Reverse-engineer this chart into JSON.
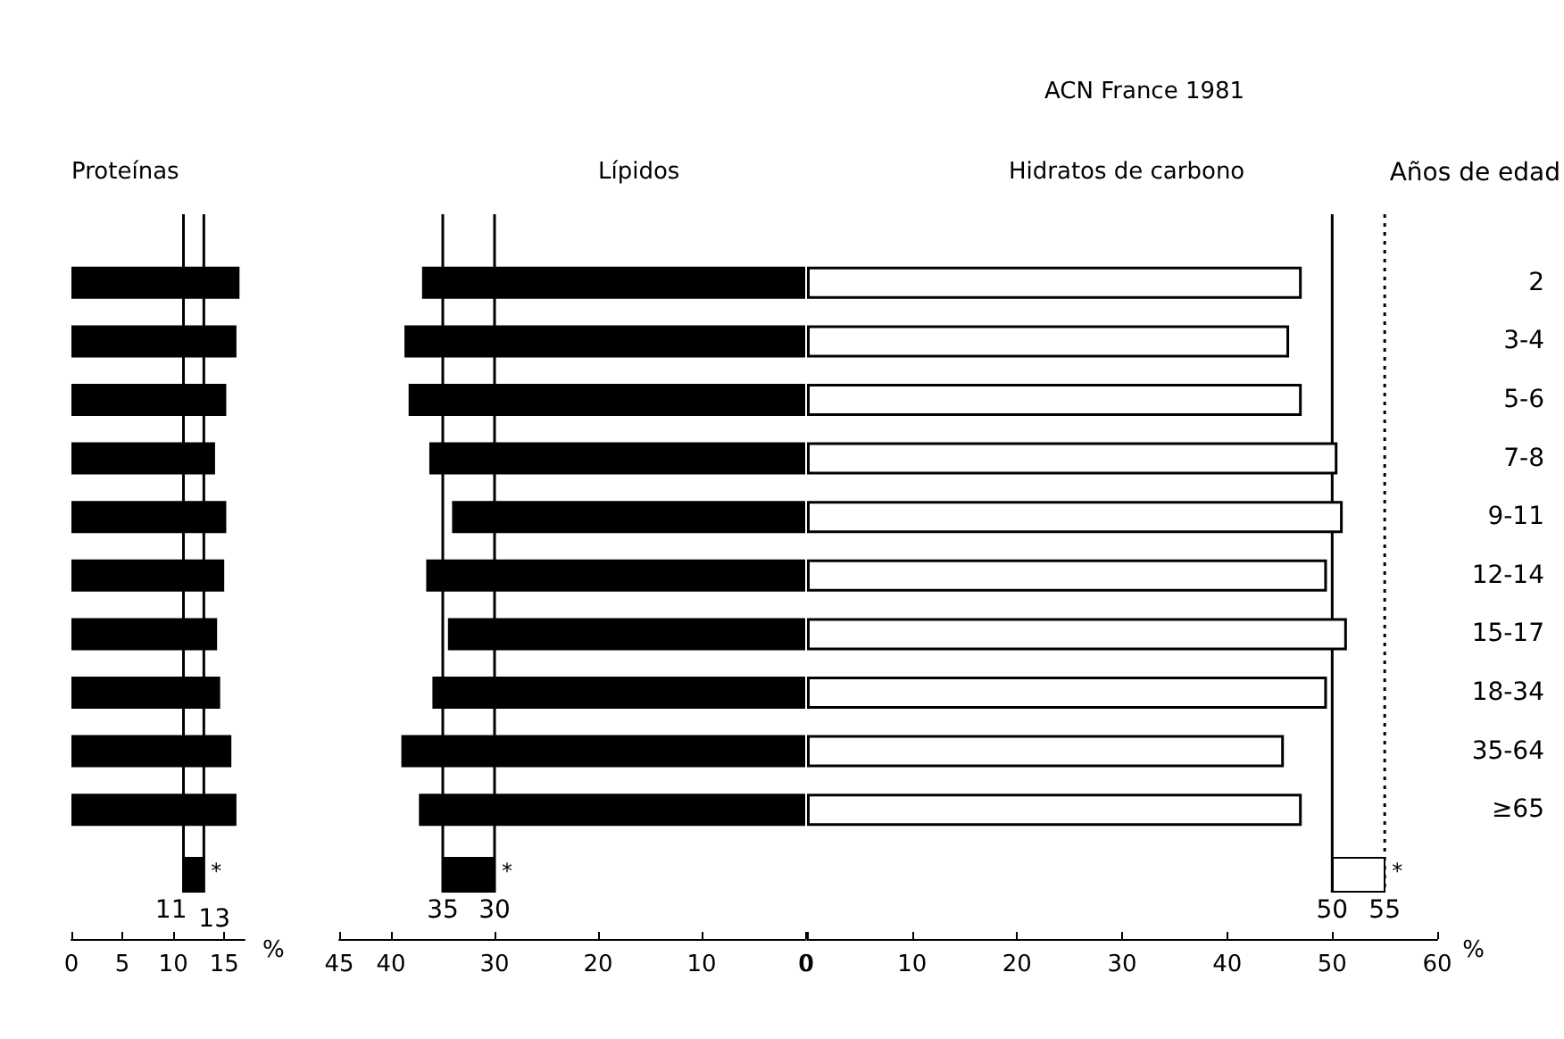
{
  "chart_data": [
    {
      "type": "bar",
      "orientation": "horizontal",
      "title": "Proteínas",
      "xlabel": "%",
      "categories": [
        null,
        null,
        null,
        null,
        null,
        null,
        null,
        null,
        null,
        null
      ],
      "values": [
        16.5,
        16.2,
        15.2,
        14.1,
        15.2,
        15.0,
        14.3,
        14.6,
        15.7,
        16.2
      ],
      "color": "#000000",
      "xlim": [
        0,
        17
      ],
      "xticks": [
        0,
        5,
        10,
        15
      ],
      "tick_labels": "x",
      "annotations": [
        {
          "text": "*",
          "x": 13
        }
      ],
      "ref_lines": [
        {
          "axis": "x",
          "value": 11,
          "label": "11"
        },
        {
          "axis": "x",
          "value": 13,
          "label": "13"
        }
      ]
    },
    {
      "type": "bar",
      "orientation": "horizontal",
      "title": "Lípidos",
      "categories": [
        null,
        null,
        null,
        null,
        null,
        null,
        null,
        null,
        null,
        null
      ],
      "values": [
        37.0,
        38.7,
        38.3,
        36.3,
        34.1,
        36.6,
        34.5,
        36.0,
        39.0,
        37.3
      ],
      "color": "#000000",
      "xlim": [
        45,
        0
      ],
      "xticks": [
        45,
        40,
        30,
        20,
        10,
        0
      ],
      "tick_labels": "x",
      "annotations": [
        {
          "text": "*",
          "x": 30
        }
      ],
      "ref_lines": [
        {
          "axis": "x",
          "value": 35,
          "label": "35"
        },
        {
          "axis": "x",
          "value": 30,
          "label": "30"
        }
      ]
    },
    {
      "type": "bar",
      "orientation": "horizontal",
      "title": "Hidratos de carbono",
      "xlabel": "%",
      "ylabel": "Años de edad",
      "annotations": [
        "ACN France 1981",
        {
          "text": "*",
          "x": 55
        }
      ],
      "categories": [
        "2",
        "3-4",
        "5-6",
        "7-8",
        "9-11",
        "12-14",
        "15-17",
        "18-34",
        "35-64",
        "≥65"
      ],
      "values": [
        47.1,
        45.9,
        47.1,
        50.5,
        51.0,
        49.5,
        51.4,
        49.5,
        45.4,
        47.1
      ],
      "color": "#ffffff",
      "xlim": [
        0,
        60
      ],
      "xticks": [
        0,
        10,
        20,
        30,
        40,
        50,
        60
      ],
      "ref_lines": [
        {
          "axis": "x",
          "value": 50,
          "label": "50"
        },
        {
          "axis": "x",
          "value": 55,
          "label": "55",
          "line_style": "dotted"
        }
      ]
    }
  ]
}
